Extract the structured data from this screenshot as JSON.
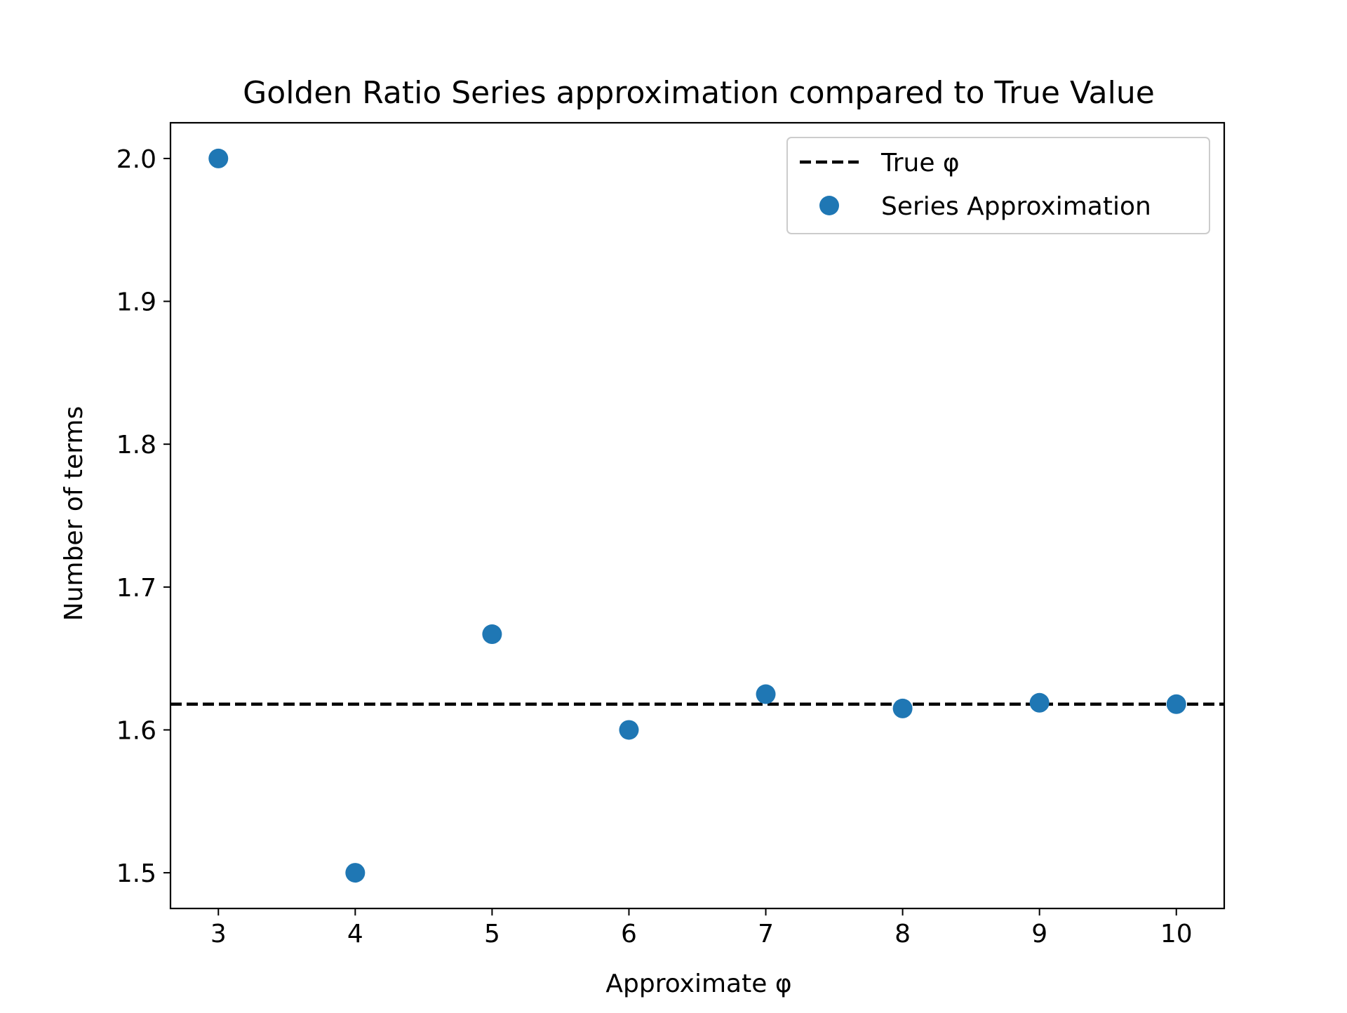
{
  "chart_data": {
    "type": "scatter",
    "title": "Golden Ratio Series approximation compared to True Value",
    "xlabel": "Approximate φ",
    "ylabel": "Number of terms",
    "xlim": [
      2.65,
      10.35
    ],
    "ylim": [
      1.475,
      2.025
    ],
    "x_ticks": [
      3,
      4,
      5,
      6,
      7,
      8,
      9,
      10
    ],
    "x_tick_labels": [
      "3",
      "4",
      "5",
      "6",
      "7",
      "8",
      "9",
      "10"
    ],
    "y_ticks": [
      1.5,
      1.6,
      1.7,
      1.8,
      1.9,
      2.0
    ],
    "y_tick_labels": [
      "1.5",
      "1.6",
      "1.7",
      "1.8",
      "1.9",
      "2.0"
    ],
    "grid": false,
    "legend": {
      "position": "top-right",
      "entries": [
        {
          "label": "True φ",
          "style": "dashed-line"
        },
        {
          "label": "Series Approximation",
          "style": "marker"
        }
      ]
    },
    "reference_line": {
      "name": "True φ",
      "y": 1.618,
      "color": "#000000",
      "style": "dashed"
    },
    "series": [
      {
        "name": "Series Approximation",
        "color": "#1f77b4",
        "x": [
          3,
          4,
          5,
          6,
          7,
          8,
          9,
          10
        ],
        "y": [
          2.0,
          1.5,
          1.667,
          1.6,
          1.625,
          1.615,
          1.619,
          1.618
        ]
      }
    ]
  }
}
